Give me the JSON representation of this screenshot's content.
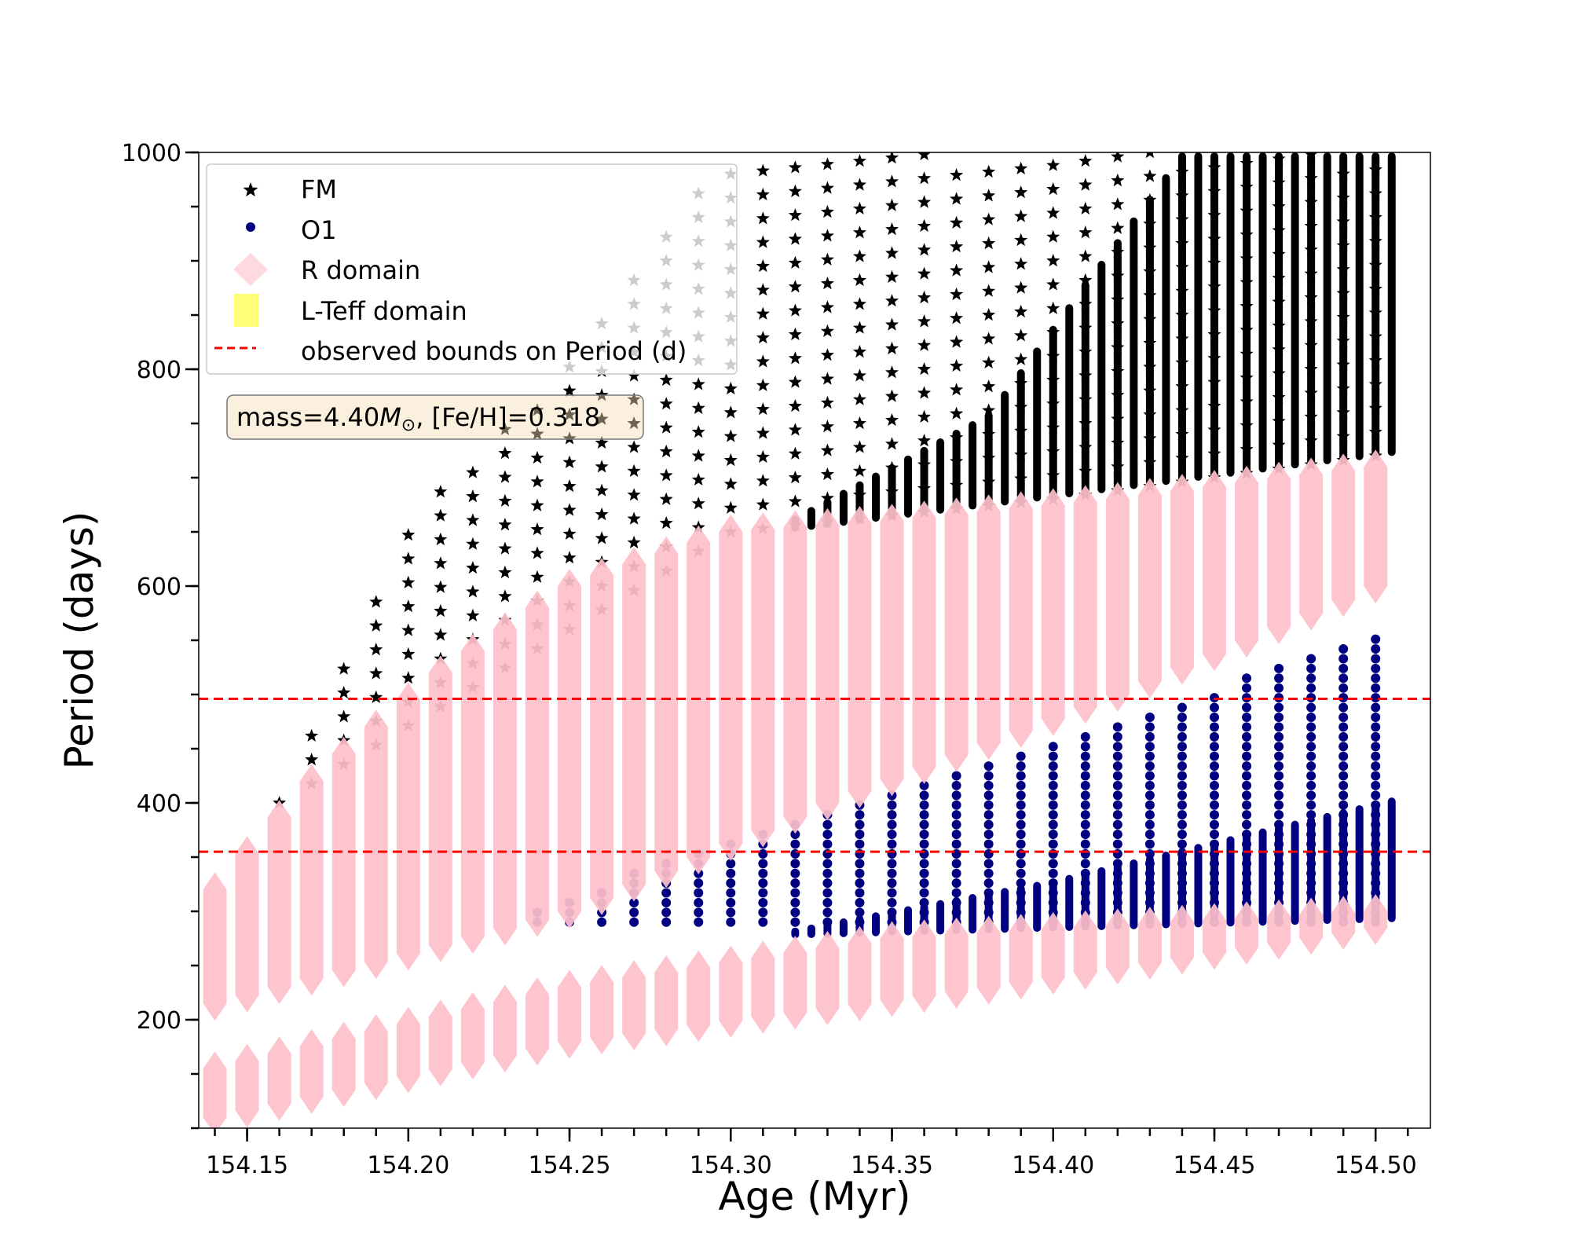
{
  "chart_data": {
    "type": "scatter",
    "title": "",
    "xlabel": "Age (Myr)",
    "ylabel": "Period (days)",
    "xlim": [
      154.135,
      154.517
    ],
    "ylim": [
      100,
      1000
    ],
    "xticks": [
      "154.15",
      "154.20",
      "154.25",
      "154.30",
      "154.35",
      "154.40",
      "154.45",
      "154.50"
    ],
    "xtick_values": [
      154.15,
      154.2,
      154.25,
      154.3,
      154.35,
      154.4,
      154.45,
      154.5
    ],
    "yticks": [
      "200",
      "400",
      "600",
      "800",
      "1000"
    ],
    "ytick_values": [
      200,
      400,
      600,
      800,
      1000
    ],
    "annotation": "mass=4.40M⊙, [Fe/H]=0.318",
    "annotation_parts": {
      "pre": "mass=4.40",
      "m": "M",
      "sun": "⊙",
      "post": ", [Fe/H]=0.318"
    },
    "hlines": [
      {
        "y": 496,
        "color": "#ff0000",
        "style": "dashed"
      },
      {
        "y": 355,
        "color": "#ff0000",
        "style": "dashed"
      }
    ],
    "legend": {
      "position": "top-left",
      "entries": [
        {
          "label": "FM",
          "marker": "star",
          "color": "#000000"
        },
        {
          "label": "O1",
          "marker": "circle",
          "color": "#000080"
        },
        {
          "label": "R domain",
          "marker": "diamond",
          "color": "#ffc0cb"
        },
        {
          "label": "L-Teff domain",
          "marker": "square",
          "color": "#ffff77"
        },
        {
          "label": "observed bounds on Period (d)",
          "marker": "dashed-line",
          "color": "#ff0000"
        }
      ]
    },
    "series": [
      {
        "name": "FM",
        "marker": "star",
        "color": "#000000",
        "mode": "sparse",
        "step": 22,
        "track_start": 154.16,
        "track_end": 154.5,
        "track_step": 0.01,
        "lower": [
          [
            154.16,
            400
          ],
          [
            154.25,
            560
          ],
          [
            154.3,
            650
          ],
          [
            154.4,
            680
          ],
          [
            154.5,
            720
          ]
        ],
        "upper": [
          [
            154.16,
            415
          ],
          [
            154.2,
            665
          ],
          [
            154.25,
            810
          ],
          [
            154.3,
            1000
          ],
          [
            154.51,
            1000
          ]
        ]
      },
      {
        "name": "FM",
        "marker": "star",
        "color": "#000000",
        "mode": "dense",
        "track_start": 154.32,
        "track_end": 154.505,
        "track_step": 0.005,
        "lower": [
          [
            154.32,
            650
          ],
          [
            154.4,
            680
          ],
          [
            154.505,
            720
          ]
        ],
        "upper": [
          [
            154.32,
            665
          ],
          [
            154.38,
            760
          ],
          [
            154.44,
            1000
          ],
          [
            154.505,
            1000
          ]
        ]
      },
      {
        "name": "O1",
        "marker": "circle",
        "color": "#000080",
        "mode": "sparse",
        "step": 9,
        "track_start": 154.24,
        "track_end": 154.5,
        "track_step": 0.01,
        "lower": [
          [
            154.24,
            290
          ],
          [
            154.5,
            290
          ]
        ],
        "upper": [
          [
            154.24,
            300
          ],
          [
            154.3,
            370
          ],
          [
            154.4,
            455
          ],
          [
            154.5,
            555
          ]
        ]
      },
      {
        "name": "O1",
        "marker": "circle",
        "color": "#000080",
        "mode": "dense",
        "track_start": 154.32,
        "track_end": 154.505,
        "track_step": 0.005,
        "lower": [
          [
            154.32,
            275
          ],
          [
            154.505,
            290
          ]
        ],
        "upper": [
          [
            154.32,
            285
          ],
          [
            154.4,
            330
          ],
          [
            154.505,
            405
          ]
        ]
      },
      {
        "name": "R domain",
        "marker": "diamond",
        "color": "#ffc0cb",
        "mode": "band",
        "track_start": 154.14,
        "track_end": 154.5,
        "track_step": 0.01,
        "lower": [
          [
            154.14,
            215
          ],
          [
            154.25,
            300
          ],
          [
            154.33,
            400
          ],
          [
            154.42,
            500
          ],
          [
            154.5,
            600
          ]
        ],
        "upper": [
          [
            154.14,
            320
          ],
          [
            154.17,
            420
          ],
          [
            154.21,
            520
          ],
          [
            154.25,
            600
          ],
          [
            154.3,
            650
          ],
          [
            154.35,
            660
          ],
          [
            154.42,
            680
          ],
          [
            154.5,
            710
          ]
        ]
      },
      {
        "name": "R domain",
        "marker": "diamond",
        "color": "#ffc0cb",
        "mode": "band",
        "track_start": 154.14,
        "track_end": 154.5,
        "track_step": 0.01,
        "lower": [
          [
            154.14,
            110
          ],
          [
            154.25,
            180
          ],
          [
            154.38,
            230
          ],
          [
            154.5,
            285
          ]
        ],
        "upper": [
          [
            154.14,
            155
          ],
          [
            154.25,
            230
          ],
          [
            154.35,
            275
          ],
          [
            154.5,
            300
          ]
        ]
      }
    ]
  }
}
